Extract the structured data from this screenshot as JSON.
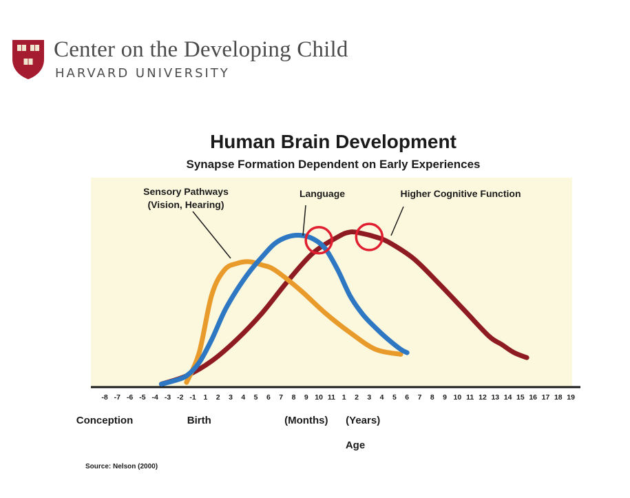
{
  "header": {
    "org_name": "Center on the Developing Child",
    "org_sub": "HARVARD UNIVERSITY",
    "shield_text": [
      "VE",
      "RI",
      "TAS"
    ]
  },
  "chart_data": {
    "type": "line",
    "title": "Human Brain Development",
    "subtitle": "Synapse Formation Dependent on Early Experiences",
    "xlabel": "Age",
    "source": "Source: Nelson (2000)",
    "x_ticks": [
      "-8",
      "-7",
      "-6",
      "-5",
      "-4",
      "-3",
      "-2",
      "-1",
      "1",
      "2",
      "3",
      "4",
      "5",
      "6",
      "7",
      "8",
      "9",
      "10",
      "11",
      "1",
      "2",
      "3",
      "4",
      "5",
      "6",
      "7",
      "8",
      "9",
      "10",
      "11",
      "12",
      "13",
      "14",
      "15",
      "16",
      "17",
      "18",
      "19"
    ],
    "x_ticks_note": "Prenatal months (-8 to -1), postnatal months (1-11), then years (1-19); x values below are tick indices 0-37",
    "x_group_labels": [
      {
        "text": "Conception",
        "at": 0
      },
      {
        "text": "Birth",
        "at": 7.5
      },
      {
        "text": "(Months)",
        "at": 16
      },
      {
        "text": "(Years)",
        "at": 20.5
      }
    ],
    "y_range": [
      0,
      100
    ],
    "series": [
      {
        "name": "Sensory Pathways",
        "label_lines": [
          "Sensory Pathways",
          "(Vision, Hearing)"
        ],
        "color": "#e89a2a",
        "x": [
          6.5,
          7.5,
          8.5,
          9.5,
          10.5,
          11.5,
          12.5,
          13.5,
          15.5,
          17.5,
          19.5,
          21.5,
          23.5
        ],
        "y": [
          2,
          20,
          55,
          70,
          74,
          75,
          73,
          70,
          58,
          44,
          32,
          22,
          19
        ]
      },
      {
        "name": "Language",
        "label_lines": [
          "Language"
        ],
        "color": "#2e77c2",
        "x": [
          4.5,
          5.5,
          6.5,
          7.5,
          8.5,
          9.5,
          10.5,
          11.5,
          12.5,
          13.5,
          14.5,
          15.5,
          16.5,
          17.5,
          18.5,
          19.5,
          20.5,
          21.5,
          22.5,
          23.5,
          24
        ],
        "y": [
          1,
          3,
          6,
          14,
          28,
          45,
          58,
          69,
          78,
          86,
          90,
          91,
          89,
          83,
          70,
          54,
          43,
          35,
          28,
          22,
          20
        ]
      },
      {
        "name": "Higher Cognitive Function",
        "label_lines": [
          "Higher Cognitive Function"
        ],
        "color": "#8e1b22",
        "x": [
          4.5,
          6.5,
          8.5,
          10.5,
          12.5,
          14.5,
          16.5,
          18.5,
          19.5,
          20.5,
          21.5,
          22.5,
          24.5,
          26.5,
          28.5,
          30.5,
          31.5,
          32.5,
          33.5
        ],
        "y": [
          1,
          6,
          15,
          28,
          44,
          63,
          80,
          90,
          93,
          92,
          90,
          87,
          77,
          62,
          46,
          30,
          25,
          20,
          17
        ]
      }
    ],
    "highlights": [
      {
        "x": 17,
        "y": 88,
        "color": "#e02030"
      },
      {
        "x": 21,
        "y": 90,
        "color": "#e02030"
      }
    ]
  }
}
